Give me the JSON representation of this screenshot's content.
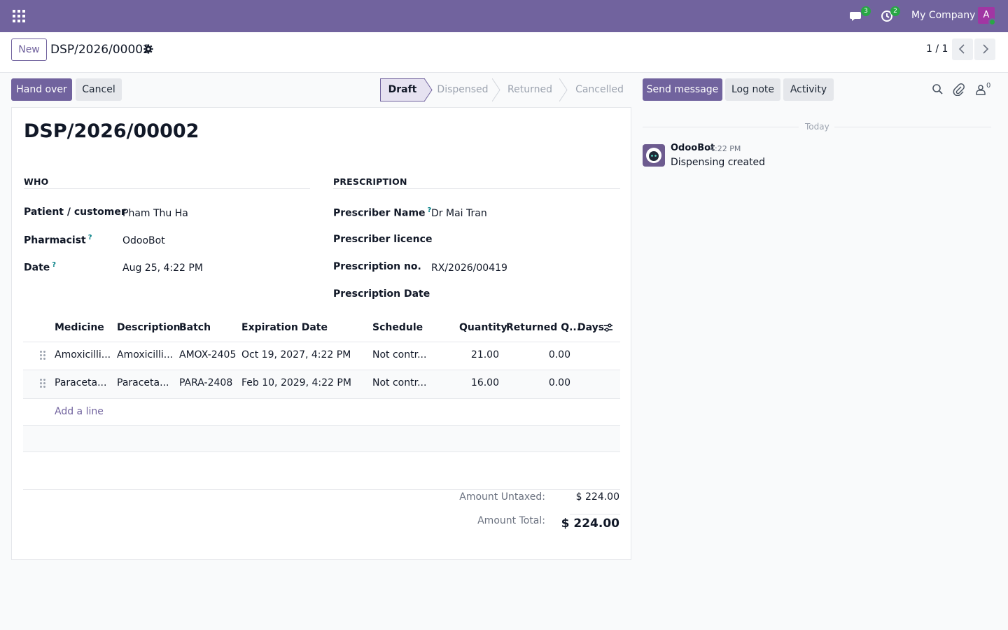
{
  "navbar": {
    "company": "My Company",
    "messages_count": "3",
    "activities_count": "2",
    "avatar_letter": "A"
  },
  "control": {
    "new_label": "New",
    "breadcrumb": "DSP/2026/00002",
    "pager": "1 / 1"
  },
  "actions": {
    "hand_over": "Hand over",
    "cancel": "Cancel"
  },
  "stages": [
    "Draft",
    "Dispensed",
    "Returned",
    "Cancelled"
  ],
  "form": {
    "title": "DSP/2026/00002",
    "who_heading": "WHO",
    "prescription_heading": "PRESCRIPTION",
    "patient_label": "Patient / customer",
    "patient_value": "Pham Thu Ha",
    "pharmacist_label": "Pharmacist",
    "pharmacist_value": "OdooBot",
    "date_label": "Date",
    "date_value": "Aug 25, 4:22 PM",
    "prescriber_name_label": "Prescriber Name",
    "prescriber_name_value": "Dr Mai Tran",
    "prescriber_licence_label": "Prescriber licence",
    "prescription_no_label": "Prescription no.",
    "prescription_no_value": "RX/2026/00419",
    "prescription_date_label": "Prescription Date",
    "help_mark": "?"
  },
  "table": {
    "headers": [
      "Medicine",
      "Description",
      "Batch",
      "Expiration Date",
      "Schedule",
      "Quantity",
      "Returned Q...",
      "Days"
    ],
    "rows": [
      {
        "medicine": "Amoxicilli...",
        "description": "Amoxicilli...",
        "batch": "AMOX-2405",
        "expiration": "Oct 19, 2027, 4:22 PM",
        "schedule": "Not contr...",
        "quantity": "21.00",
        "returned": "0.00"
      },
      {
        "medicine": "Paraceta...",
        "description": "Paraceta...",
        "batch": "PARA-2408",
        "expiration": "Feb 10, 2029, 4:22 PM",
        "schedule": "Not contr...",
        "quantity": "16.00",
        "returned": "0.00"
      }
    ],
    "add_line": "Add a line"
  },
  "totals": {
    "untaxed_label": "Amount Untaxed:",
    "untaxed_value": "$ 224.00",
    "total_label": "Amount Total:",
    "total_value": "$ 224.00"
  },
  "chatter": {
    "send_message": "Send message",
    "log_note": "Log note",
    "activity": "Activity",
    "followers_count": "0",
    "today": "Today",
    "author": "OdooBot",
    "time": "4:22 PM",
    "message": "Dispensing created"
  },
  "colors": {
    "brand": "#71639e",
    "badge": "#28a745",
    "avatar": "#a136a3"
  }
}
